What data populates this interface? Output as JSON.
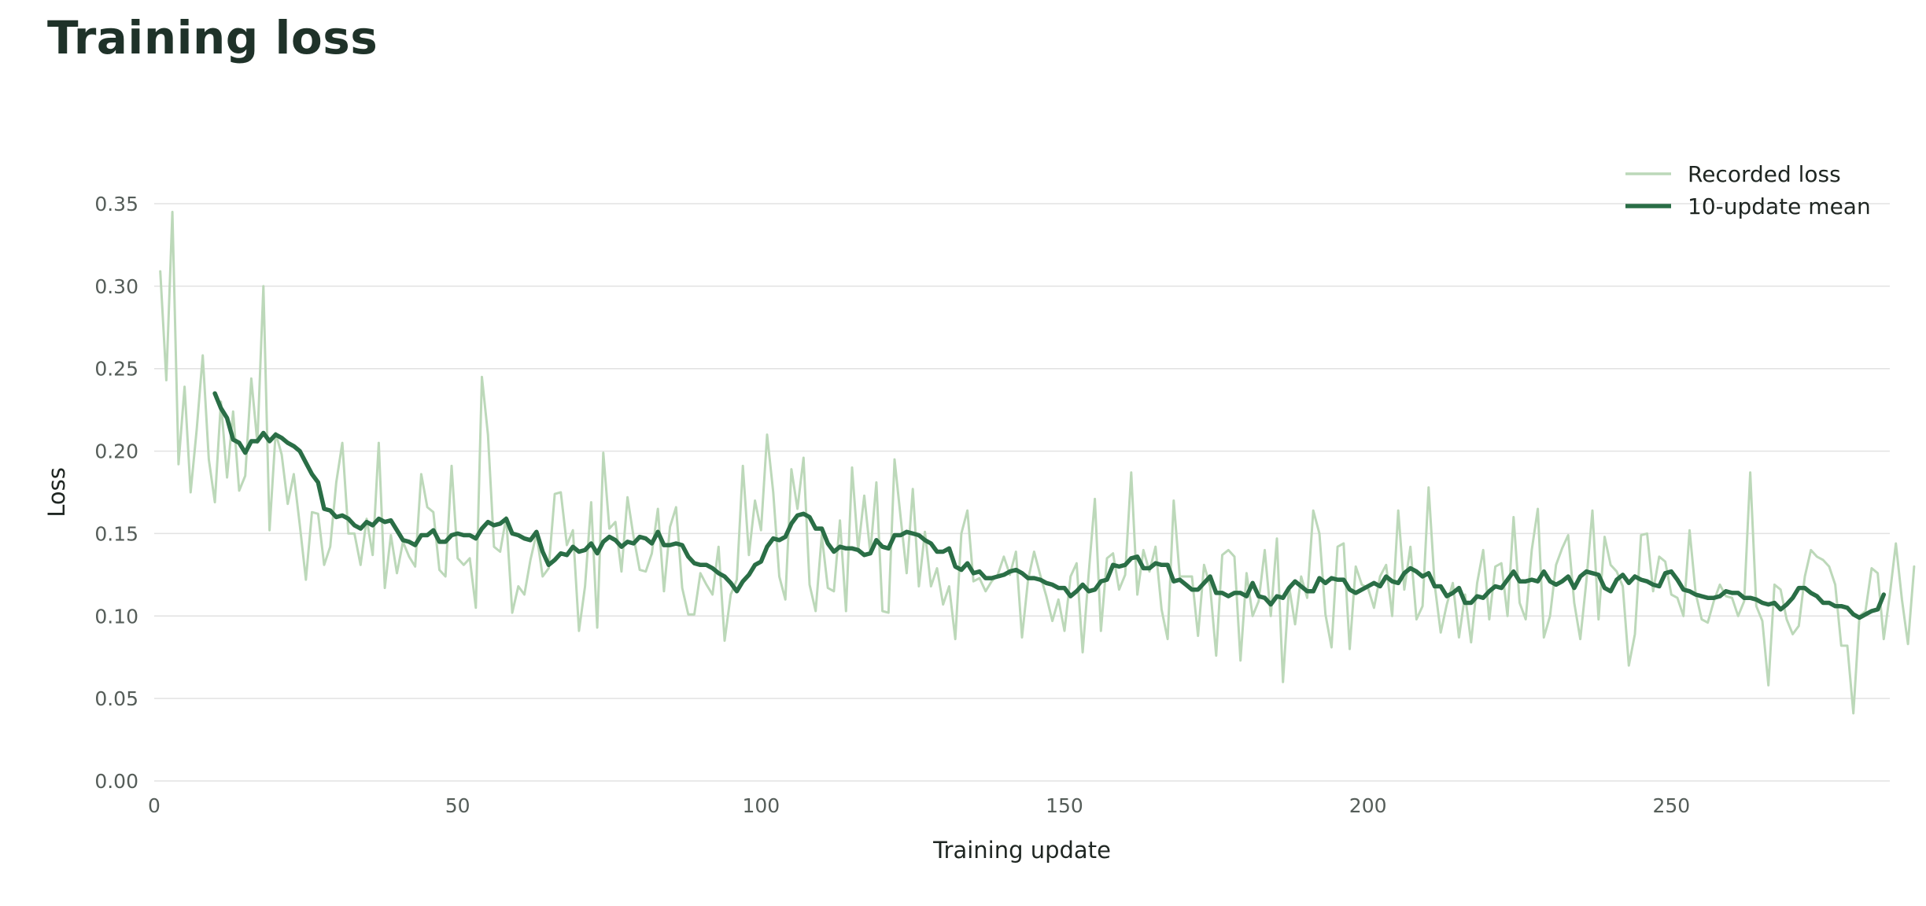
{
  "page": {
    "title": "Training loss"
  },
  "colors": {
    "raw": "#bcd8b9",
    "mean": "#2a6e46",
    "grid": "#e2e2e2",
    "title": "#1f3229"
  },
  "chart_data": {
    "type": "line",
    "title": "Training loss",
    "xlabel": "Training update",
    "ylabel": "Loss",
    "xlim": [
      0,
      286
    ],
    "ylim": [
      0,
      0.35
    ],
    "xticks": [
      0,
      50,
      100,
      150,
      200,
      250
    ],
    "xtick_labels": [
      "0",
      "50",
      "100",
      "150",
      "200",
      "250"
    ],
    "yticks": [
      0,
      0.05,
      0.1,
      0.15,
      0.2,
      0.25,
      0.3,
      0.35
    ],
    "ytick_labels": [
      "0.00",
      "0.05",
      "0.10",
      "0.15",
      "0.20",
      "0.25",
      "0.30",
      "0.35"
    ],
    "grid": "horizontal",
    "legend_position": "top-right",
    "series": [
      {
        "name": "Recorded loss",
        "x_start": 1,
        "values": [
          0.309,
          0.243,
          0.345,
          0.192,
          0.239,
          0.175,
          0.213,
          0.258,
          0.195,
          0.169,
          0.23,
          0.184,
          0.224,
          0.176,
          0.185,
          0.244,
          0.205,
          0.3,
          0.152,
          0.211,
          0.198,
          0.168,
          0.186,
          0.155,
          0.122,
          0.163,
          0.162,
          0.131,
          0.142,
          0.181,
          0.205,
          0.15,
          0.15,
          0.131,
          0.159,
          0.137,
          0.205,
          0.117,
          0.149,
          0.126,
          0.145,
          0.136,
          0.13,
          0.186,
          0.166,
          0.163,
          0.128,
          0.124,
          0.191,
          0.135,
          0.131,
          0.135,
          0.105,
          0.245,
          0.21,
          0.142,
          0.139,
          0.16,
          0.102,
          0.118,
          0.113,
          0.134,
          0.15,
          0.124,
          0.129,
          0.174,
          0.175,
          0.143,
          0.152,
          0.091,
          0.118,
          0.169,
          0.093,
          0.199,
          0.153,
          0.157,
          0.127,
          0.172,
          0.148,
          0.128,
          0.127,
          0.138,
          0.165,
          0.115,
          0.154,
          0.166,
          0.117,
          0.101,
          0.101,
          0.126,
          0.119,
          0.113,
          0.142,
          0.085,
          0.113,
          0.122,
          0.191,
          0.137,
          0.17,
          0.152,
          0.21,
          0.175,
          0.124,
          0.11,
          0.189,
          0.165,
          0.196,
          0.119,
          0.103,
          0.149,
          0.117,
          0.115,
          0.158,
          0.103,
          0.19,
          0.14,
          0.173,
          0.138,
          0.181,
          0.103,
          0.102,
          0.195,
          0.16,
          0.126,
          0.177,
          0.118,
          0.151,
          0.118,
          0.129,
          0.107,
          0.118,
          0.086,
          0.15,
          0.164,
          0.121,
          0.123,
          0.115,
          0.121,
          0.125,
          0.136,
          0.125,
          0.139,
          0.087,
          0.122,
          0.139,
          0.125,
          0.112,
          0.097,
          0.11,
          0.091,
          0.124,
          0.132,
          0.078,
          0.126,
          0.171,
          0.091,
          0.135,
          0.138,
          0.116,
          0.125,
          0.187,
          0.113,
          0.14,
          0.127,
          0.142,
          0.104,
          0.086,
          0.17,
          0.124,
          0.124,
          0.124,
          0.088,
          0.131,
          0.118,
          0.076,
          0.137,
          0.14,
          0.136,
          0.073,
          0.126,
          0.1,
          0.109,
          0.14,
          0.1,
          0.147,
          0.06,
          0.118,
          0.095,
          0.124,
          0.111,
          0.164,
          0.15,
          0.101,
          0.081,
          0.142,
          0.144,
          0.08,
          0.13,
          0.119,
          0.117,
          0.105,
          0.124,
          0.131,
          0.1,
          0.164,
          0.116,
          0.142,
          0.098,
          0.106,
          0.178,
          0.119,
          0.09,
          0.107,
          0.12,
          0.087,
          0.113,
          0.084,
          0.12,
          0.14,
          0.098,
          0.13,
          0.132,
          0.1,
          0.16,
          0.108,
          0.098,
          0.14,
          0.165,
          0.087,
          0.1,
          0.131,
          0.141,
          0.149,
          0.108,
          0.086,
          0.121,
          0.164,
          0.098,
          0.148,
          0.131,
          0.127,
          0.118,
          0.07,
          0.089,
          0.149,
          0.15,
          0.115,
          0.136,
          0.133,
          0.113,
          0.111,
          0.1,
          0.152,
          0.114,
          0.098,
          0.096,
          0.109,
          0.119,
          0.112,
          0.111,
          0.1,
          0.109,
          0.187,
          0.106,
          0.097,
          0.058,
          0.119,
          0.116,
          0.098,
          0.089,
          0.094,
          0.124,
          0.14,
          0.136,
          0.134,
          0.13,
          0.119,
          0.082,
          0.082,
          0.041,
          0.1,
          0.103,
          0.129,
          0.126,
          0.086,
          0.113,
          0.144,
          0.11,
          0.083,
          0.13
        ]
      },
      {
        "name": "10-update mean",
        "x_start": 10,
        "values": [
          0.235,
          0.226,
          0.22,
          0.207,
          0.205,
          0.199,
          0.206,
          0.206,
          0.211,
          0.206,
          0.21,
          0.208,
          0.205,
          0.203,
          0.2,
          0.193,
          0.186,
          0.181,
          0.165,
          0.164,
          0.16,
          0.161,
          0.159,
          0.155,
          0.153,
          0.157,
          0.155,
          0.159,
          0.157,
          0.158,
          0.152,
          0.146,
          0.145,
          0.143,
          0.149,
          0.149,
          0.152,
          0.145,
          0.145,
          0.149,
          0.15,
          0.149,
          0.149,
          0.147,
          0.153,
          0.157,
          0.155,
          0.156,
          0.159,
          0.15,
          0.149,
          0.147,
          0.146,
          0.151,
          0.139,
          0.131,
          0.134,
          0.138,
          0.137,
          0.142,
          0.139,
          0.14,
          0.144,
          0.138,
          0.145,
          0.148,
          0.146,
          0.142,
          0.145,
          0.144,
          0.148,
          0.147,
          0.144,
          0.151,
          0.143,
          0.143,
          0.144,
          0.143,
          0.136,
          0.132,
          0.131,
          0.131,
          0.129,
          0.126,
          0.124,
          0.12,
          0.115,
          0.121,
          0.125,
          0.131,
          0.133,
          0.142,
          0.147,
          0.146,
          0.148,
          0.156,
          0.161,
          0.162,
          0.16,
          0.153,
          0.153,
          0.144,
          0.139,
          0.142,
          0.141,
          0.141,
          0.14,
          0.137,
          0.138,
          0.146,
          0.142,
          0.141,
          0.149,
          0.149,
          0.151,
          0.15,
          0.149,
          0.146,
          0.144,
          0.139,
          0.139,
          0.141,
          0.13,
          0.128,
          0.132,
          0.126,
          0.127,
          0.123,
          0.123,
          0.124,
          0.125,
          0.127,
          0.128,
          0.126,
          0.123,
          0.123,
          0.122,
          0.12,
          0.119,
          0.117,
          0.117,
          0.112,
          0.115,
          0.119,
          0.115,
          0.116,
          0.121,
          0.122,
          0.131,
          0.13,
          0.131,
          0.135,
          0.136,
          0.129,
          0.129,
          0.132,
          0.131,
          0.131,
          0.121,
          0.122,
          0.119,
          0.116,
          0.116,
          0.12,
          0.124,
          0.114,
          0.114,
          0.112,
          0.114,
          0.114,
          0.112,
          0.12,
          0.112,
          0.111,
          0.107,
          0.112,
          0.111,
          0.117,
          0.121,
          0.118,
          0.115,
          0.115,
          0.123,
          0.12,
          0.123,
          0.122,
          0.122,
          0.116,
          0.114,
          0.116,
          0.118,
          0.12,
          0.118,
          0.124,
          0.121,
          0.12,
          0.126,
          0.129,
          0.127,
          0.124,
          0.126,
          0.118,
          0.118,
          0.112,
          0.114,
          0.117,
          0.108,
          0.108,
          0.112,
          0.111,
          0.115,
          0.118,
          0.117,
          0.122,
          0.127,
          0.121,
          0.121,
          0.122,
          0.121,
          0.127,
          0.121,
          0.119,
          0.121,
          0.124,
          0.117,
          0.124,
          0.127,
          0.126,
          0.125,
          0.117,
          0.115,
          0.122,
          0.125,
          0.12,
          0.124,
          0.122,
          0.121,
          0.119,
          0.118,
          0.126,
          0.127,
          0.122,
          0.116,
          0.115,
          0.113,
          0.112,
          0.111,
          0.111,
          0.112,
          0.115,
          0.114,
          0.114,
          0.111,
          0.111,
          0.11,
          0.108,
          0.107,
          0.108,
          0.104,
          0.107,
          0.111,
          0.117,
          0.117,
          0.114,
          0.112,
          0.108,
          0.108,
          0.106,
          0.106,
          0.105,
          0.101,
          0.099,
          0.101,
          0.103,
          0.104,
          0.113
        ]
      }
    ]
  }
}
